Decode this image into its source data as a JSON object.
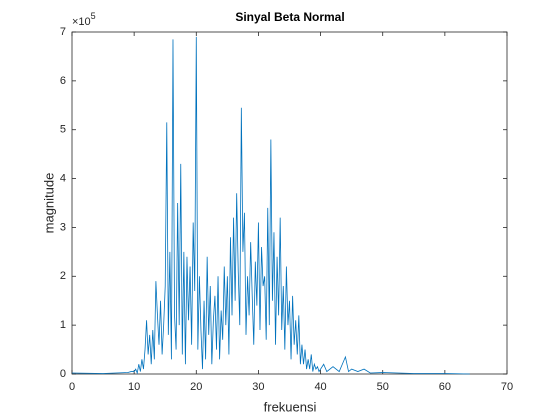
{
  "chart_data": {
    "type": "line",
    "title": "Sinyal Beta Normal",
    "x_label": "frekuensi",
    "y_label": "magnitude",
    "y_exponent": {
      "base": "×10",
      "power": "5"
    },
    "xlim": [
      0,
      70
    ],
    "xticks": [
      0,
      10,
      20,
      30,
      40,
      50,
      60,
      70
    ],
    "ylim": [
      0,
      7
    ],
    "yticks": [
      0,
      1,
      2,
      3,
      4,
      5,
      6,
      7
    ],
    "grid": false,
    "box": true,
    "x": [
      0,
      5,
      9,
      9.5,
      10,
      10.25,
      10.5,
      10.75,
      11,
      11.25,
      11.5,
      11.75,
      12,
      12.25,
      12.5,
      12.75,
      13,
      13.25,
      13.5,
      13.75,
      14,
      14.25,
      14.5,
      14.75,
      15,
      15.25,
      15.5,
      15.75,
      16,
      16.25,
      16.5,
      16.75,
      17,
      17.25,
      17.5,
      17.75,
      18,
      18.25,
      18.5,
      18.75,
      19,
      19.25,
      19.5,
      19.75,
      20,
      20.25,
      20.5,
      20.75,
      21,
      21.25,
      21.5,
      21.75,
      22,
      22.25,
      22.5,
      22.75,
      23,
      23.25,
      23.5,
      23.75,
      24,
      24.25,
      24.5,
      24.75,
      25,
      25.25,
      25.5,
      25.75,
      26,
      26.25,
      26.5,
      26.75,
      27,
      27.25,
      27.5,
      27.75,
      28,
      28.25,
      28.5,
      28.75,
      29,
      29.25,
      29.5,
      29.75,
      30,
      30.25,
      30.5,
      30.75,
      31,
      31.25,
      31.5,
      31.75,
      32,
      32.25,
      32.5,
      32.75,
      33,
      33.25,
      33.5,
      33.75,
      34,
      34.25,
      34.5,
      34.75,
      35,
      35.25,
      35.5,
      35.75,
      36,
      36.25,
      36.5,
      36.75,
      37,
      37.25,
      37.5,
      37.75,
      38,
      38.25,
      38.5,
      38.75,
      39,
      39.25,
      39.5,
      39.75,
      40,
      40.5,
      41,
      42,
      43,
      44,
      44.5,
      45,
      46,
      47,
      48,
      50,
      55,
      60,
      64
    ],
    "series": [
      {
        "name": "magnitude",
        "color": "#0072bd",
        "values": [
          0.02,
          0.01,
          0.03,
          0.05,
          0.05,
          0.1,
          0.02,
          0.2,
          0.05,
          0.3,
          0.1,
          0.5,
          1.1,
          0.4,
          0.8,
          0.2,
          0.9,
          0.3,
          1.9,
          1.2,
          0.6,
          1.5,
          0.4,
          1.0,
          1.8,
          5.15,
          0.8,
          2.5,
          0.3,
          6.85,
          1.2,
          0.5,
          3.5,
          1.0,
          4.3,
          0.4,
          2.5,
          0.2,
          2.4,
          1.1,
          2.2,
          0.6,
          3.1,
          1.7,
          6.9,
          0.5,
          2.0,
          0.9,
          0.1,
          1.5,
          0.3,
          2.4,
          0.8,
          1.8,
          0.2,
          1.1,
          1.6,
          0.5,
          2.0,
          0.3,
          1.3,
          0.7,
          2.2,
          1.0,
          2.0,
          0.4,
          2.8,
          1.2,
          3.2,
          1.5,
          3.7,
          2.1,
          1.0,
          5.45,
          2.5,
          3.3,
          0.8,
          2.0,
          1.2,
          2.7,
          1.6,
          0.6,
          2.3,
          1.4,
          3.1,
          0.9,
          2.6,
          1.8,
          2.0,
          0.7,
          3.4,
          1.0,
          4.8,
          1.5,
          2.9,
          0.6,
          2.4,
          1.2,
          3.2,
          0.9,
          1.8,
          0.5,
          2.2,
          1.0,
          1.5,
          0.3,
          1.6,
          0.6,
          1.1,
          0.4,
          1.2,
          0.2,
          0.6,
          0.2,
          0.5,
          0.1,
          0.3,
          0.1,
          0.4,
          0.05,
          0.2,
          0.1,
          0.15,
          0.05,
          0.1,
          0.2,
          0.05,
          0.15,
          0.05,
          0.35,
          0.05,
          0.1,
          0.05,
          0.1,
          0.02,
          0.03,
          0.01,
          0.01,
          0
        ]
      }
    ]
  }
}
